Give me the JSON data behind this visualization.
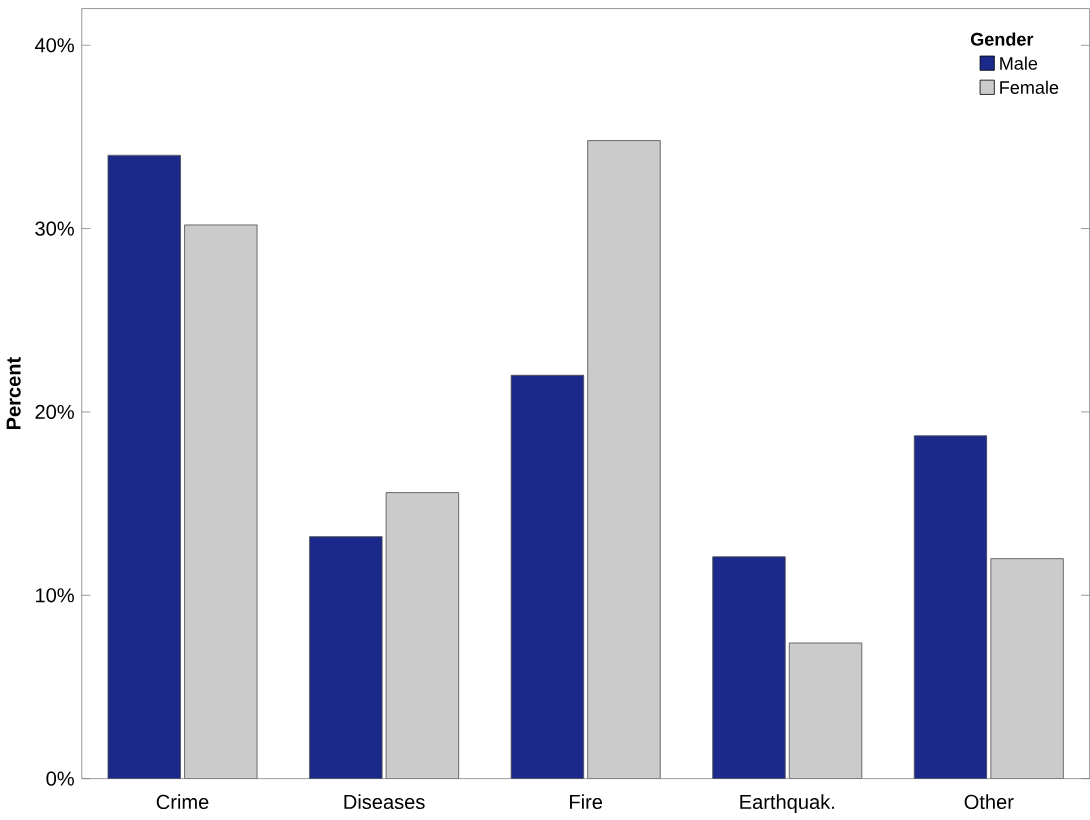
{
  "chart_data": {
    "type": "bar",
    "ylabel": "Percent",
    "legend_title": "Gender",
    "categories": [
      "Crime",
      "Diseases",
      "Fire",
      "Earthquak.",
      "Other"
    ],
    "series": [
      {
        "name": "Male",
        "color": "#1b2a8a",
        "values": [
          34.0,
          13.2,
          22.0,
          12.1,
          18.7
        ]
      },
      {
        "name": "Female",
        "color": "#cbcbcb",
        "values": [
          30.2,
          15.6,
          34.8,
          7.4,
          12.0
        ]
      }
    ],
    "ylim": [
      0,
      42
    ],
    "yticks": [
      {
        "value": 0,
        "label": "0%"
      },
      {
        "value": 10,
        "label": "10%"
      },
      {
        "value": 20,
        "label": "20%"
      },
      {
        "value": 30,
        "label": "30%"
      },
      {
        "value": 40,
        "label": "40%"
      }
    ],
    "legend": "top right",
    "grid": false
  }
}
